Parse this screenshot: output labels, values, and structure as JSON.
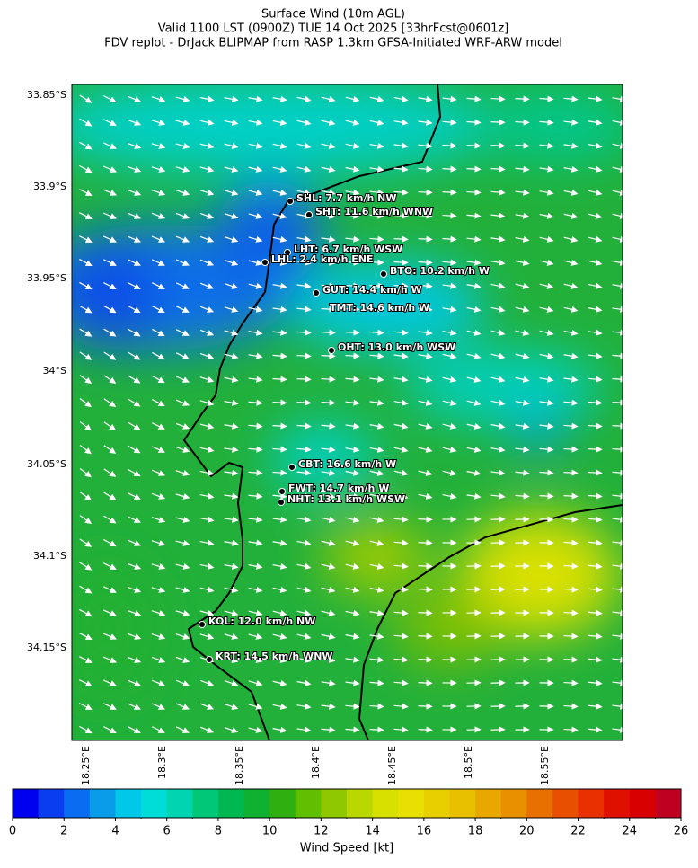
{
  "header": {
    "title": "Surface Wind (10m AGL)",
    "subtitle": "Valid 1100 LST (0900Z) TUE 14 Oct 2025 [33hrFcst@0601z]",
    "source": "FDV replot - DrJack BLIPMAP from RASP 1.3km GFSA-Initiated WRF-ARW model"
  },
  "map": {
    "lat_labels": [
      "33.85°S",
      "33.9°S",
      "33.95°S",
      "34°S",
      "34.05°S",
      "34.1°S",
      "34.15°S"
    ],
    "lon_labels": [
      "18.25°E",
      "18.3°E",
      "18.35°E",
      "18.4°E",
      "18.45°E",
      "18.5°E",
      "18.55°E"
    ],
    "stations": [
      "SHL: 7.7 km/h NW",
      "SHT: 11.6 km/h WNW",
      "LHT: 6.7 km/h WSW",
      "LHL: 2.4 km/h ENE",
      "BTO: 10.2 km/h W",
      "GUT: 14.4 km/h W",
      "TMT: 14.6 km/h W",
      "OHT: 13.0 km/h WSW",
      "CBT: 16.6 km/h W",
      "FWT: 14.7 km/h W",
      "NHT: 13.1 km/h WSW",
      "KOL: 12.0 km/h NW",
      "KRT: 14.5 km/h WNW"
    ]
  },
  "colorbar": {
    "label": "Wind Speed [kt]",
    "lim": [
      0,
      26
    ],
    "ticks": [
      0,
      2,
      4,
      6,
      8,
      10,
      12,
      14,
      16,
      18,
      20,
      22,
      24,
      26
    ],
    "colors": [
      "#0000f0",
      "#0a3cf0",
      "#0a6cf0",
      "#0a9ce8",
      "#00c8e8",
      "#00dcd8",
      "#00d4b0",
      "#00c878",
      "#00b850",
      "#10b030",
      "#30b010",
      "#60c000",
      "#90c800",
      "#b8d800",
      "#d8e000",
      "#e8e000",
      "#e8d000",
      "#e8c000",
      "#e8a800",
      "#e89000",
      "#e87000",
      "#e85000",
      "#e83000",
      "#e01000",
      "#d80000",
      "#c00020"
    ]
  }
}
